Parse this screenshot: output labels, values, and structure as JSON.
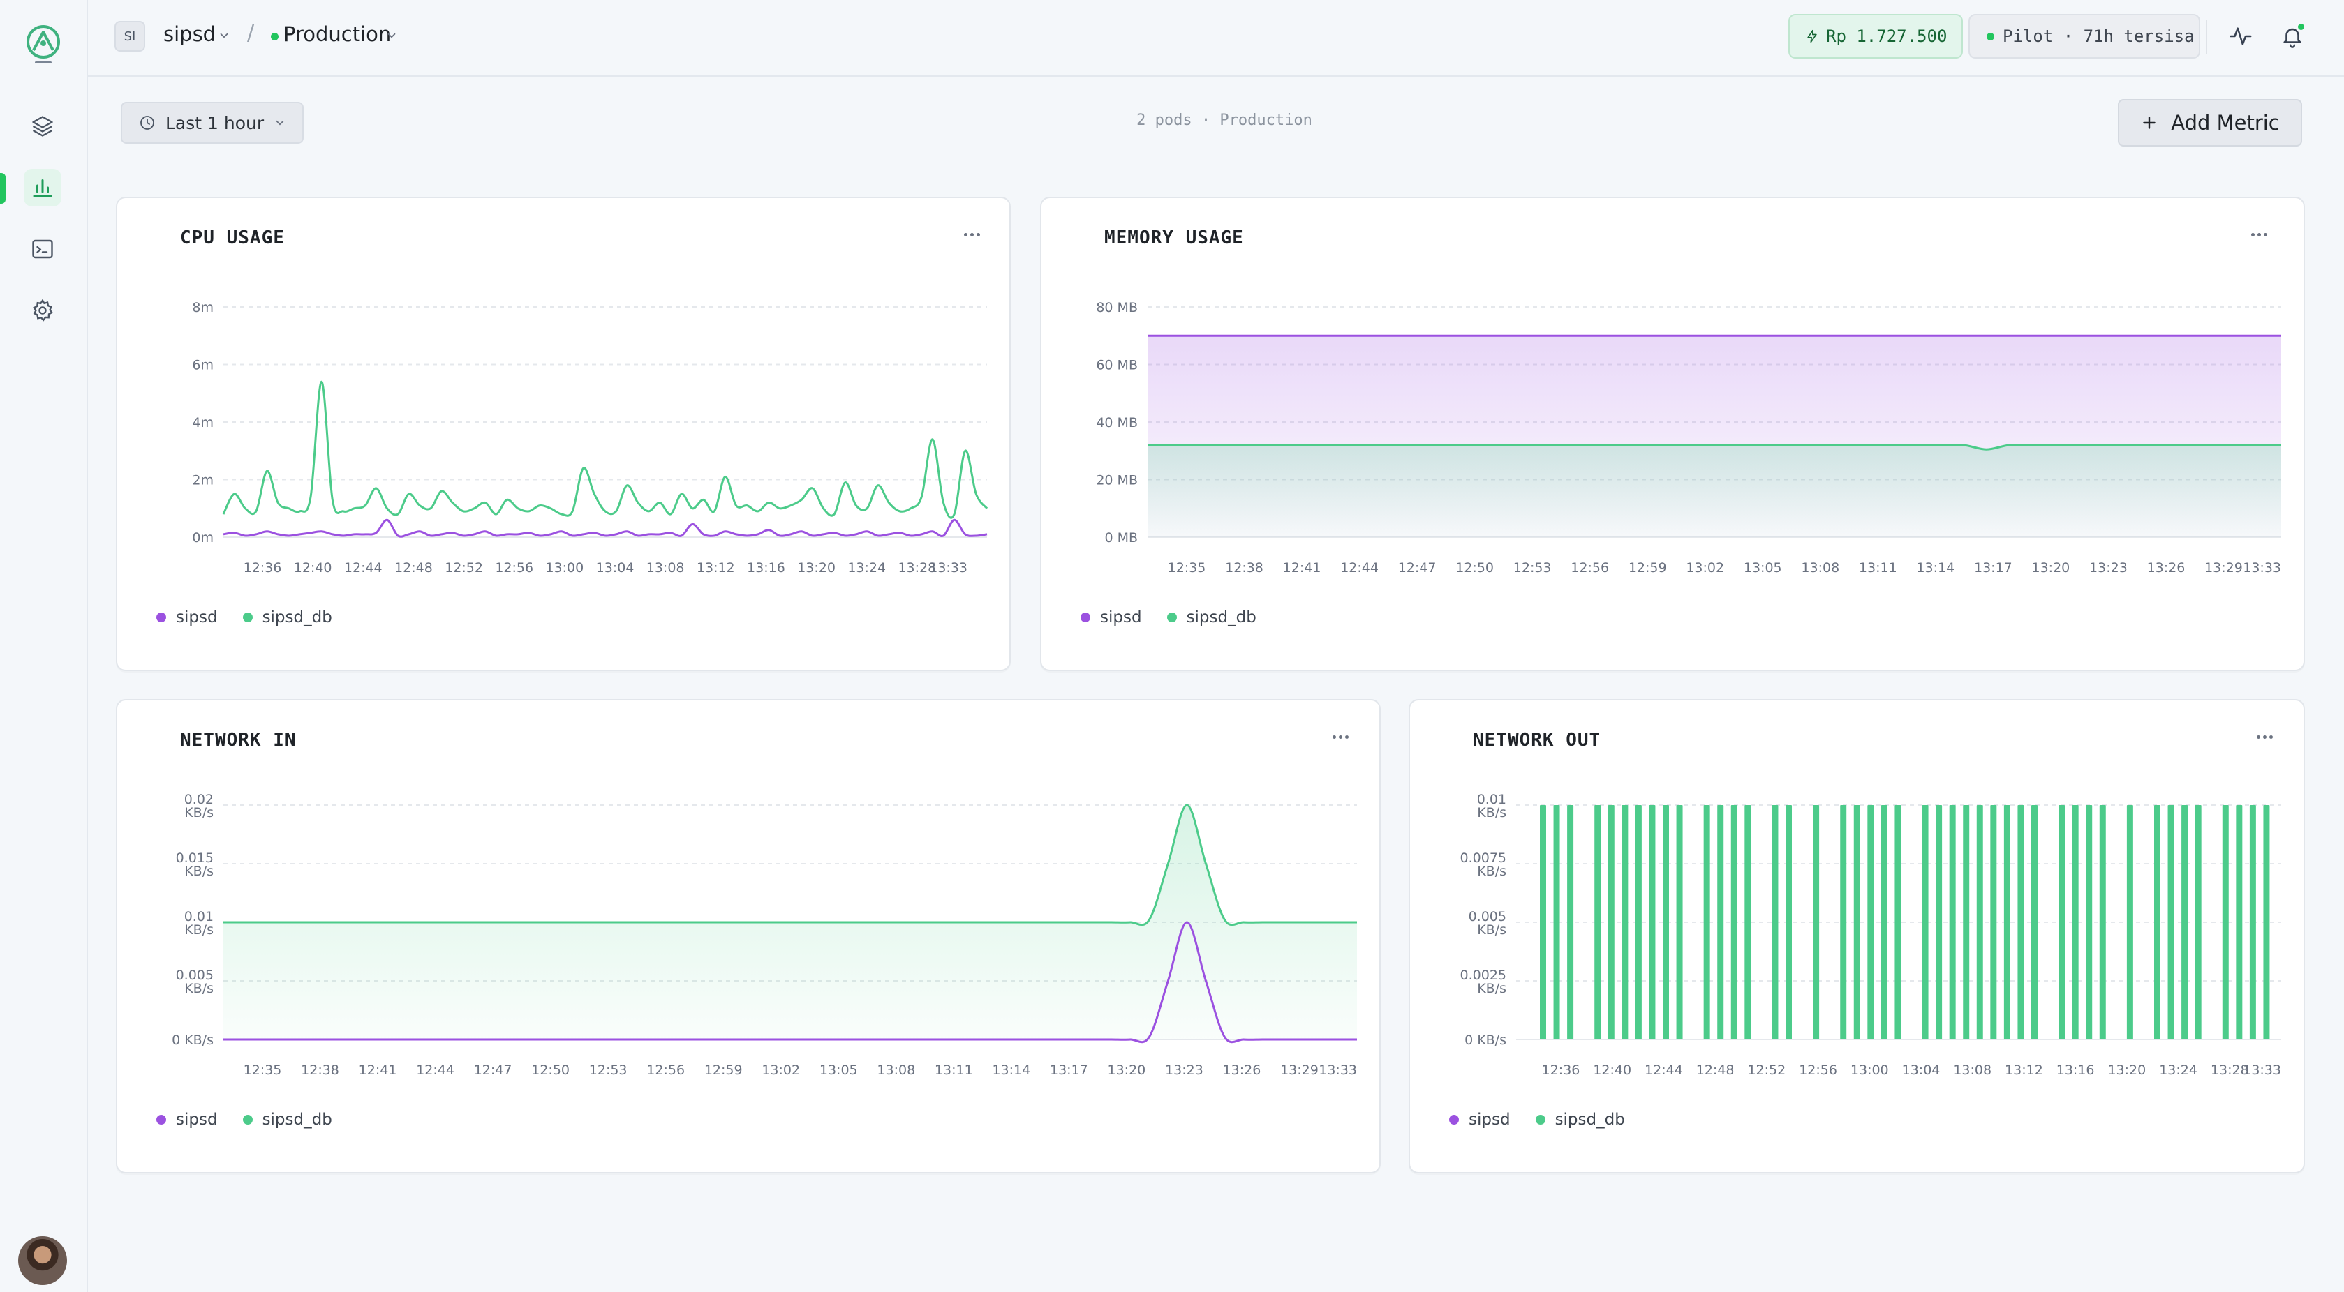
{
  "colors": {
    "sipsd": "#9b51e0",
    "sipsd_db": "#4ccb8a",
    "accent": "#22c55e"
  },
  "header": {
    "project_initials": "SI",
    "project_name": "sipsd",
    "separator": "/",
    "environment": "Production",
    "balance": "Rp 1.727.500",
    "plan": "Pilot · 71h tersisa"
  },
  "sidebar": {
    "items": [
      "layers-icon",
      "chart-icon",
      "terminal-icon",
      "gear-icon"
    ],
    "active": "chart-icon"
  },
  "toolbar": {
    "time_range": "Last 1 hour",
    "summary": "2 pods · Production",
    "add_metric": "Add Metric"
  },
  "chart_data": [
    {
      "id": "cpu",
      "type": "line",
      "title": "CPU USAGE",
      "y_ticks": [
        "0m",
        "2m",
        "4m",
        "6m",
        "8m"
      ],
      "ylim": [
        0,
        8
      ],
      "x_ticks": [
        "12:36",
        "12:40",
        "12:44",
        "12:48",
        "12:52",
        "12:56",
        "13:00",
        "13:04",
        "13:08",
        "13:12",
        "13:16",
        "13:20",
        "13:24",
        "13:28",
        "13:33"
      ],
      "series": [
        {
          "name": "sipsd_db",
          "color": "#4ccb8a",
          "fill": false,
          "values": [
            0.8,
            1.5,
            1.0,
            0.9,
            2.3,
            1.2,
            1.0,
            0.9,
            1.4,
            5.4,
            1.3,
            0.9,
            1.0,
            1.1,
            1.7,
            1.0,
            0.8,
            1.5,
            1.1,
            1.0,
            1.6,
            1.2,
            0.9,
            1.0,
            1.2,
            0.8,
            1.3,
            1.0,
            0.9,
            1.1,
            1.0,
            0.8,
            0.9,
            2.4,
            1.5,
            0.9,
            0.9,
            1.8,
            1.2,
            0.9,
            1.2,
            0.8,
            1.5,
            1.0,
            1.3,
            0.9,
            2.1,
            1.1,
            1.1,
            0.9,
            1.2,
            1.0,
            1.1,
            1.3,
            1.7,
            1.0,
            0.8,
            1.9,
            1.1,
            1.0,
            1.8,
            1.2,
            0.9,
            1.0,
            1.4,
            3.4,
            1.2,
            0.8,
            3.0,
            1.5,
            1.0
          ]
        },
        {
          "name": "sipsd",
          "color": "#9b51e0",
          "fill": false,
          "values": [
            0.1,
            0.15,
            0.05,
            0.1,
            0.2,
            0.1,
            0.05,
            0.1,
            0.15,
            0.2,
            0.1,
            0.05,
            0.1,
            0.1,
            0.15,
            0.6,
            0.05,
            0.1,
            0.2,
            0.05,
            0.1,
            0.15,
            0.05,
            0.1,
            0.2,
            0.05,
            0.1,
            0.1,
            0.15,
            0.05,
            0.1,
            0.2,
            0.05,
            0.1,
            0.15,
            0.05,
            0.1,
            0.2,
            0.05,
            0.1,
            0.1,
            0.15,
            0.05,
            0.45,
            0.1,
            0.05,
            0.2,
            0.1,
            0.05,
            0.1,
            0.25,
            0.05,
            0.1,
            0.2,
            0.05,
            0.1,
            0.15,
            0.05,
            0.1,
            0.2,
            0.05,
            0.1,
            0.15,
            0.05,
            0.1,
            0.2,
            0.05,
            0.6,
            0.1,
            0.05,
            0.1
          ]
        }
      ],
      "legend": [
        "sipsd",
        "sipsd_db"
      ]
    },
    {
      "id": "memory",
      "type": "area",
      "title": "MEMORY USAGE",
      "y_ticks": [
        "0 MB",
        "20 MB",
        "40 MB",
        "60 MB",
        "80 MB"
      ],
      "ylim": [
        0,
        80
      ],
      "x_ticks": [
        "12:35",
        "12:38",
        "12:41",
        "12:44",
        "12:47",
        "12:50",
        "12:53",
        "12:56",
        "12:59",
        "13:02",
        "13:05",
        "13:08",
        "13:11",
        "13:14",
        "13:17",
        "13:20",
        "13:23",
        "13:26",
        "13:29",
        "13:33"
      ],
      "series": [
        {
          "name": "sipsd",
          "color": "#9b51e0",
          "fill": true,
          "values": [
            70,
            70,
            70,
            70,
            70,
            70,
            70,
            70,
            70,
            70,
            70,
            70,
            70,
            70,
            70,
            70,
            70,
            70,
            70,
            70,
            70,
            70,
            70,
            70,
            70,
            70,
            70,
            70,
            70,
            70,
            70,
            70,
            70,
            70,
            70,
            70,
            70,
            70,
            70,
            70,
            70
          ]
        },
        {
          "name": "sipsd_db",
          "color": "#4ccb8a",
          "fill": true,
          "values": [
            32,
            32,
            32,
            32,
            32,
            32,
            32,
            32,
            32,
            32,
            32,
            32,
            32,
            32,
            32,
            32,
            32,
            32,
            32,
            32,
            32,
            32,
            32,
            32,
            32,
            32,
            32,
            32,
            32,
            32,
            32,
            32,
            32,
            32,
            32,
            32,
            32,
            30.5,
            32,
            32,
            32,
            32,
            32,
            32,
            32,
            32,
            32,
            32,
            32,
            32,
            32
          ]
        }
      ],
      "legend": [
        "sipsd",
        "sipsd_db"
      ]
    },
    {
      "id": "network_in",
      "type": "area",
      "title": "NETWORK IN",
      "y_ticks": [
        "0 KB/s",
        "0.005 KB/s",
        "0.01 KB/s",
        "0.015 KB/s",
        "0.02 KB/s"
      ],
      "ylim": [
        0,
        0.02
      ],
      "x_ticks": [
        "12:35",
        "12:38",
        "12:41",
        "12:44",
        "12:47",
        "12:50",
        "12:53",
        "12:56",
        "12:59",
        "13:02",
        "13:05",
        "13:08",
        "13:11",
        "13:14",
        "13:17",
        "13:20",
        "13:23",
        "13:26",
        "13:29",
        "13:33"
      ],
      "series": [
        {
          "name": "sipsd_db",
          "color": "#4ccb8a",
          "fill": true,
          "values": [
            0.01,
            0.01,
            0.01,
            0.01,
            0.01,
            0.01,
            0.01,
            0.01,
            0.01,
            0.01,
            0.01,
            0.01,
            0.01,
            0.01,
            0.01,
            0.01,
            0.01,
            0.01,
            0.01,
            0.01,
            0.01,
            0.01,
            0.01,
            0.01,
            0.01,
            0.01,
            0.01,
            0.01,
            0.01,
            0.01,
            0.01,
            0.01,
            0.01,
            0.01,
            0.01,
            0.01,
            0.01,
            0.01,
            0.01,
            0.01,
            0.01,
            0.01,
            0.01,
            0.01,
            0.01,
            0.01,
            0.01,
            0.01,
            0.01,
            0.0102,
            0.015,
            0.02,
            0.015,
            0.0102,
            0.01,
            0.01,
            0.01,
            0.01,
            0.01,
            0.01,
            0.01
          ]
        },
        {
          "name": "sipsd",
          "color": "#9b51e0",
          "fill": false,
          "values": [
            0,
            0,
            0,
            0,
            0,
            0,
            0,
            0,
            0,
            0,
            0,
            0,
            0,
            0,
            0,
            0,
            0,
            0,
            0,
            0,
            0,
            0,
            0,
            0,
            0,
            0,
            0,
            0,
            0,
            0,
            0,
            0,
            0,
            0,
            0,
            0,
            0,
            0,
            0,
            0,
            0,
            0,
            0,
            0,
            0,
            0,
            0,
            0,
            0,
            0.0002,
            0.005,
            0.01,
            0.005,
            0.0002,
            0,
            0,
            0,
            0,
            0,
            0,
            0
          ]
        }
      ],
      "legend": [
        "sipsd",
        "sipsd_db"
      ]
    },
    {
      "id": "network_out",
      "type": "bar",
      "title": "NETWORK OUT",
      "y_ticks": [
        "0 KB/s",
        "0.0025 KB/s",
        "0.005 KB/s",
        "0.0075 KB/s",
        "0.01 KB/s"
      ],
      "ylim": [
        0,
        0.01
      ],
      "x_ticks": [
        "12:36",
        "12:40",
        "12:44",
        "12:48",
        "12:52",
        "12:56",
        "13:00",
        "13:04",
        "13:08",
        "13:12",
        "13:16",
        "13:20",
        "13:24",
        "13:28",
        "13:33"
      ],
      "series": [
        {
          "name": "sipsd_db",
          "color": "#4ccb8a",
          "values": [
            0.01,
            0.01,
            0.01,
            0,
            0.01,
            0.01,
            0.01,
            0.01,
            0.01,
            0.01,
            0.01,
            0,
            0.01,
            0.01,
            0.01,
            0.01,
            0,
            0.01,
            0.01,
            0,
            0.01,
            0,
            0.01,
            0.01,
            0.01,
            0.01,
            0.01,
            0,
            0.01,
            0.01,
            0.01,
            0.01,
            0.01,
            0.01,
            0.01,
            0.01,
            0.01,
            0,
            0.01,
            0.01,
            0.01,
            0.01,
            0,
            0.01,
            0,
            0.01,
            0.01,
            0.01,
            0.01,
            0,
            0.01,
            0.01,
            0.01,
            0.01
          ]
        }
      ],
      "legend": [
        "sipsd",
        "sipsd_db"
      ]
    }
  ]
}
